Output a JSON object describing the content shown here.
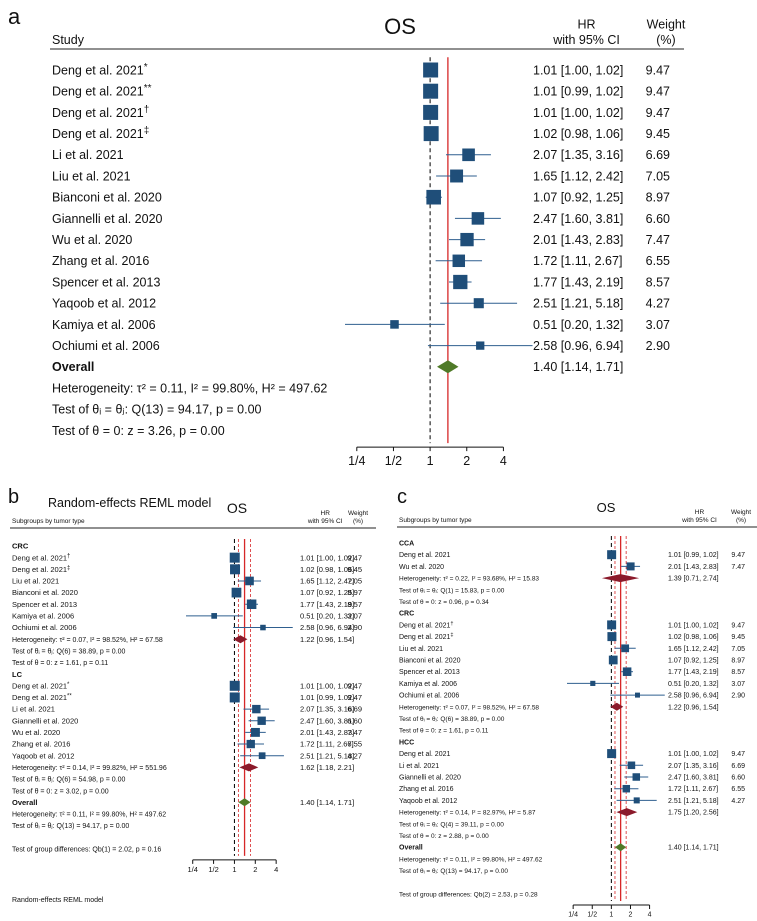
{
  "panel_labels": [
    "a",
    "b",
    "c"
  ],
  "colors": {
    "marker": "#1f4e79",
    "ci": "#2f5f8f",
    "diamond_overall": "#4f7a28",
    "diamond_subgroup": "#8b1a2b",
    "ref_line": "#d62728",
    "null_line": "#000000"
  },
  "chart_data": [
    {
      "id": "a",
      "type": "forest",
      "title": "OS",
      "col_study": "Study",
      "col_hr": [
        "HR",
        "with 95% CI"
      ],
      "col_weight": [
        "Weight",
        "(%)"
      ],
      "x_ticks": [
        "1/4",
        "1/2",
        "1",
        "2",
        "4"
      ],
      "x_tick_values": [
        0.25,
        0.5,
        1,
        2,
        4
      ],
      "xlim": [
        0.2,
        7.0
      ],
      "model_label": "Random-effects REML model",
      "rows": [
        {
          "kind": "study",
          "label": "Deng et al. 2021",
          "sup": "*",
          "hr": 1.01,
          "lo": 1.0,
          "hi": 1.02,
          "text": "1.01 [1.00, 1.02]",
          "weight": "9.47"
        },
        {
          "kind": "study",
          "label": "Deng et al. 2021",
          "sup": "**",
          "hr": 1.01,
          "lo": 0.99,
          "hi": 1.02,
          "text": "1.01 [0.99, 1.02]",
          "weight": "9.47"
        },
        {
          "kind": "study",
          "label": "Deng et al. 2021",
          "sup": "†",
          "hr": 1.01,
          "lo": 1.0,
          "hi": 1.02,
          "text": "1.01 [1.00, 1.02]",
          "weight": "9.47"
        },
        {
          "kind": "study",
          "label": "Deng et al. 2021",
          "sup": "‡",
          "hr": 1.02,
          "lo": 0.98,
          "hi": 1.06,
          "text": "1.02 [0.98, 1.06]",
          "weight": "9.45"
        },
        {
          "kind": "study",
          "label": "Li et al. 2021",
          "hr": 2.07,
          "lo": 1.35,
          "hi": 3.16,
          "text": "2.07 [1.35, 3.16]",
          "weight": "6.69"
        },
        {
          "kind": "study",
          "label": "Liu et al. 2021",
          "hr": 1.65,
          "lo": 1.12,
          "hi": 2.42,
          "text": "1.65 [1.12, 2.42]",
          "weight": "7.05"
        },
        {
          "kind": "study",
          "label": "Bianconi et al. 2020",
          "hr": 1.07,
          "lo": 0.92,
          "hi": 1.25,
          "text": "1.07 [0.92, 1.25]",
          "weight": "8.97"
        },
        {
          "kind": "study",
          "label": "Giannelli et al. 2020",
          "hr": 2.47,
          "lo": 1.6,
          "hi": 3.81,
          "text": "2.47 [1.60, 3.81]",
          "weight": "6.60"
        },
        {
          "kind": "study",
          "label": "Wu et al. 2020",
          "hr": 2.01,
          "lo": 1.43,
          "hi": 2.83,
          "text": "2.01 [1.43, 2.83]",
          "weight": "7.47"
        },
        {
          "kind": "study",
          "label": "Zhang et al. 2016",
          "hr": 1.72,
          "lo": 1.11,
          "hi": 2.67,
          "text": "1.72 [1.11, 2.67]",
          "weight": "6.55"
        },
        {
          "kind": "study",
          "label": "Spencer et al. 2013",
          "hr": 1.77,
          "lo": 1.43,
          "hi": 2.19,
          "text": "1.77 [1.43, 2.19]",
          "weight": "8.57"
        },
        {
          "kind": "study",
          "label": "Yaqoob et al. 2012",
          "hr": 2.51,
          "lo": 1.21,
          "hi": 5.18,
          "text": "2.51 [1.21, 5.18]",
          "weight": "4.27"
        },
        {
          "kind": "study",
          "label": "Kamiya et al. 2006",
          "hr": 0.51,
          "lo": 0.2,
          "hi": 1.32,
          "text": "0.51 [0.20, 1.32]",
          "weight": "3.07"
        },
        {
          "kind": "study",
          "label": "Ochiumi et al. 2006",
          "hr": 2.58,
          "lo": 0.96,
          "hi": 6.94,
          "text": "2.58 [0.96, 6.94]",
          "weight": "2.90"
        },
        {
          "kind": "overall",
          "label": "Overall",
          "hr": 1.4,
          "lo": 1.14,
          "hi": 1.71,
          "text": "1.40 [1.14, 1.71]"
        },
        {
          "kind": "stat",
          "label": "Heterogeneity: τ² = 0.11, I² = 99.80%, H² = 497.62"
        },
        {
          "kind": "stat",
          "label": "Test of θᵢ = θⱼ: Q(13) = 94.17, p = 0.00"
        },
        {
          "kind": "stat",
          "label": "Test of θ = 0: z = 3.26, p = 0.00"
        }
      ]
    },
    {
      "id": "b",
      "type": "forest",
      "title": "OS",
      "col_study": "Subgroups by tumor type",
      "col_hr": [
        "HR",
        "with 95% CI"
      ],
      "col_weight": [
        "Weight",
        "(%)"
      ],
      "x_ticks": [
        "1/4",
        "1/2",
        "1",
        "2",
        "4"
      ],
      "x_tick_values": [
        0.25,
        0.5,
        1,
        2,
        4
      ],
      "xlim": [
        0.2,
        7.0
      ],
      "model_label": "Random-effects REML model",
      "rows": [
        {
          "kind": "header",
          "label": "CRC"
        },
        {
          "kind": "study",
          "label": "Deng et al. 2021",
          "sup": "†",
          "hr": 1.01,
          "lo": 1.0,
          "hi": 1.02,
          "text": "1.01 [1.00, 1.02]",
          "weight": "9.47"
        },
        {
          "kind": "study",
          "label": "Deng et al. 2021",
          "sup": "‡",
          "hr": 1.02,
          "lo": 0.98,
          "hi": 1.06,
          "text": "1.02 [0.98, 1.06]",
          "weight": "9.45"
        },
        {
          "kind": "study",
          "label": "Liu et al. 2021",
          "hr": 1.65,
          "lo": 1.12,
          "hi": 2.42,
          "text": "1.65 [1.12, 2.42]",
          "weight": "7.05"
        },
        {
          "kind": "study",
          "label": "Bianconi et al. 2020",
          "hr": 1.07,
          "lo": 0.92,
          "hi": 1.25,
          "text": "1.07 [0.92, 1.25]",
          "weight": "8.97"
        },
        {
          "kind": "study",
          "label": "Spencer et al. 2013",
          "hr": 1.77,
          "lo": 1.43,
          "hi": 2.19,
          "text": "1.77 [1.43, 2.19]",
          "weight": "8.57"
        },
        {
          "kind": "study",
          "label": "Kamiya et al. 2006",
          "hr": 0.51,
          "lo": 0.2,
          "hi": 1.32,
          "text": "0.51 [0.20, 1.32]",
          "weight": "3.07"
        },
        {
          "kind": "study",
          "label": "Ochiumi et al. 2006",
          "hr": 2.58,
          "lo": 0.96,
          "hi": 6.94,
          "text": "2.58 [0.96, 6.94]",
          "weight": "2.90"
        },
        {
          "kind": "subgroup",
          "label": "Heterogeneity: τ² = 0.07, I² = 98.52%, H² = 67.58",
          "hr": 1.22,
          "lo": 0.96,
          "hi": 1.54,
          "text": "1.22 [0.96, 1.54]"
        },
        {
          "kind": "stat",
          "label": "Test of θᵢ = θⱼ: Q(6) = 38.89, p = 0.00"
        },
        {
          "kind": "stat",
          "label": "Test of θ = 0: z = 1.61, p = 0.11"
        },
        {
          "kind": "header",
          "label": "LC"
        },
        {
          "kind": "study",
          "label": "Deng et al. 2021",
          "sup": "*",
          "hr": 1.01,
          "lo": 1.0,
          "hi": 1.02,
          "text": "1.01 [1.00, 1.02]",
          "weight": "9.47"
        },
        {
          "kind": "study",
          "label": "Deng et al. 2021",
          "sup": "**",
          "hr": 1.01,
          "lo": 0.99,
          "hi": 1.02,
          "text": "1.01 [0.99, 1.02]",
          "weight": "9.47"
        },
        {
          "kind": "study",
          "label": "Li et al. 2021",
          "hr": 2.07,
          "lo": 1.35,
          "hi": 3.16,
          "text": "2.07 [1.35, 3.16]",
          "weight": "6.69"
        },
        {
          "kind": "study",
          "label": "Giannelli et al. 2020",
          "hr": 2.47,
          "lo": 1.6,
          "hi": 3.81,
          "text": "2.47 [1.60, 3.81]",
          "weight": "6.60"
        },
        {
          "kind": "study",
          "label": "Wu et al. 2020",
          "hr": 2.01,
          "lo": 1.43,
          "hi": 2.83,
          "text": "2.01 [1.43, 2.83]",
          "weight": "7.47"
        },
        {
          "kind": "study",
          "label": "Zhang et al. 2016",
          "hr": 1.72,
          "lo": 1.11,
          "hi": 2.67,
          "text": "1.72 [1.11, 2.67]",
          "weight": "6.55"
        },
        {
          "kind": "study",
          "label": "Yaqoob et al. 2012",
          "hr": 2.51,
          "lo": 1.21,
          "hi": 5.18,
          "text": "2.51 [1.21, 5.18]",
          "weight": "4.27"
        },
        {
          "kind": "subgroup",
          "label": "Heterogeneity: τ² = 0.14, I² = 99.82%, H² = 551.96",
          "hr": 1.62,
          "lo": 1.18,
          "hi": 2.21,
          "text": "1.62 [1.18, 2.21]"
        },
        {
          "kind": "stat",
          "label": "Test of θᵢ = θⱼ: Q(6) = 54.98, p = 0.00"
        },
        {
          "kind": "stat",
          "label": "Test of θ = 0: z = 3.02, p = 0.00"
        },
        {
          "kind": "overall",
          "label": "Overall",
          "hr": 1.4,
          "lo": 1.14,
          "hi": 1.71,
          "text": "1.40 [1.14, 1.71]"
        },
        {
          "kind": "stat",
          "label": "Heterogeneity: τ² = 0.11, I² = 99.80%, H² = 497.62"
        },
        {
          "kind": "stat",
          "label": "Test of θᵢ = θⱼ: Q(13) = 94.17, p = 0.00"
        },
        {
          "kind": "gap"
        },
        {
          "kind": "stat",
          "label": "Test of group differences: Qb(1) = 2.02, p = 0.16"
        }
      ]
    },
    {
      "id": "c",
      "type": "forest",
      "title": "OS",
      "col_study": "Subgroups by tumor type",
      "col_hr": [
        "HR",
        "with 95% CI"
      ],
      "col_weight": [
        "Weight",
        "(%)"
      ],
      "x_ticks": [
        "1/4",
        "1/2",
        "1",
        "2",
        "4"
      ],
      "x_tick_values": [
        0.25,
        0.5,
        1,
        2,
        4
      ],
      "xlim": [
        0.2,
        7.0
      ],
      "model_label": "Random-effects REML model",
      "rows": [
        {
          "kind": "header",
          "label": "CCA"
        },
        {
          "kind": "study",
          "label": "Deng et al. 2021",
          "hr": 1.01,
          "lo": 0.99,
          "hi": 1.02,
          "text": "1.01 [0.99, 1.02]",
          "weight": "9.47"
        },
        {
          "kind": "study",
          "label": "Wu et al. 2020",
          "hr": 2.01,
          "lo": 1.43,
          "hi": 2.83,
          "text": "2.01 [1.43, 2.83]",
          "weight": "7.47"
        },
        {
          "kind": "subgroup",
          "label": "Heterogeneity: τ² = 0.22, I² = 93.68%, H² = 15.83",
          "hr": 1.39,
          "lo": 0.71,
          "hi": 2.74,
          "text": "1.39 [0.71, 2.74]"
        },
        {
          "kind": "stat",
          "label": "Test of θᵢ = θⱼ: Q(1) = 15.83, p = 0.00"
        },
        {
          "kind": "stat",
          "label": "Test of θ = 0: z = 0.96, p = 0.34"
        },
        {
          "kind": "header",
          "label": "CRC"
        },
        {
          "kind": "study",
          "label": "Deng et al. 2021",
          "sup": "†",
          "hr": 1.01,
          "lo": 1.0,
          "hi": 1.02,
          "text": "1.01 [1.00, 1.02]",
          "weight": "9.47"
        },
        {
          "kind": "study",
          "label": "Deng et al. 2021",
          "sup": "‡",
          "hr": 1.02,
          "lo": 0.98,
          "hi": 1.06,
          "text": "1.02 [0.98, 1.06]",
          "weight": "9.45"
        },
        {
          "kind": "study",
          "label": "Liu et al. 2021",
          "hr": 1.65,
          "lo": 1.12,
          "hi": 2.42,
          "text": "1.65 [1.12, 2.42]",
          "weight": "7.05"
        },
        {
          "kind": "study",
          "label": "Bianconi et al. 2020",
          "hr": 1.07,
          "lo": 0.92,
          "hi": 1.25,
          "text": "1.07 [0.92, 1.25]",
          "weight": "8.97"
        },
        {
          "kind": "study",
          "label": "Spencer et al. 2013",
          "hr": 1.77,
          "lo": 1.43,
          "hi": 2.19,
          "text": "1.77 [1.43, 2.19]",
          "weight": "8.57"
        },
        {
          "kind": "study",
          "label": "Kamiya et al. 2006",
          "hr": 0.51,
          "lo": 0.2,
          "hi": 1.32,
          "text": "0.51 [0.20, 1.32]",
          "weight": "3.07"
        },
        {
          "kind": "study",
          "label": "Ochiumi et al. 2006",
          "hr": 2.58,
          "lo": 0.96,
          "hi": 6.94,
          "text": "2.58 [0.96, 6.94]",
          "weight": "2.90"
        },
        {
          "kind": "subgroup",
          "label": "Heterogeneity: τ² = 0.07, I² = 98.52%, H² = 67.58",
          "hr": 1.22,
          "lo": 0.96,
          "hi": 1.54,
          "text": "1.22 [0.96, 1.54]"
        },
        {
          "kind": "stat",
          "label": "Test of θᵢ = θⱼ: Q(6) = 38.89, p = 0.00"
        },
        {
          "kind": "stat",
          "label": "Test of θ = 0: z = 1.61, p = 0.11"
        },
        {
          "kind": "header",
          "label": "HCC"
        },
        {
          "kind": "study",
          "label": "Deng et al. 2021",
          "hr": 1.01,
          "lo": 1.0,
          "hi": 1.02,
          "text": "1.01 [1.00, 1.02]",
          "weight": "9.47"
        },
        {
          "kind": "study",
          "label": "Li et al. 2021",
          "hr": 2.07,
          "lo": 1.35,
          "hi": 3.16,
          "text": "2.07 [1.35, 3.16]",
          "weight": "6.69"
        },
        {
          "kind": "study",
          "label": "Giannelli et al. 2020",
          "hr": 2.47,
          "lo": 1.6,
          "hi": 3.81,
          "text": "2.47 [1.60, 3.81]",
          "weight": "6.60"
        },
        {
          "kind": "study",
          "label": "Zhang et al. 2016",
          "hr": 1.72,
          "lo": 1.11,
          "hi": 2.67,
          "text": "1.72 [1.11, 2.67]",
          "weight": "6.55"
        },
        {
          "kind": "study",
          "label": "Yaqoob et al. 2012",
          "hr": 2.51,
          "lo": 1.21,
          "hi": 5.18,
          "text": "2.51 [1.21, 5.18]",
          "weight": "4.27"
        },
        {
          "kind": "subgroup",
          "label": "Heterogeneity: τ² = 0.14, I² = 82.97%, H² = 5.87",
          "hr": 1.75,
          "lo": 1.2,
          "hi": 2.56,
          "text": "1.75 [1.20, 2.56]"
        },
        {
          "kind": "stat",
          "label": "Test of θᵢ = θⱼ: Q(4) = 39.11, p = 0.00"
        },
        {
          "kind": "stat",
          "label": "Test of θ = 0: z = 2.88, p = 0.00"
        },
        {
          "kind": "overall",
          "label": "Overall",
          "hr": 1.4,
          "lo": 1.14,
          "hi": 1.71,
          "text": "1.40 [1.14, 1.71]"
        },
        {
          "kind": "stat",
          "label": "Heterogeneity: τ² = 0.11, I² = 99.80%, H² = 497.62"
        },
        {
          "kind": "stat",
          "label": "Test of θᵢ = θⱼ: Q(13) = 94.17, p = 0.00"
        },
        {
          "kind": "gap"
        },
        {
          "kind": "stat",
          "label": "Test of group differences: Qb(2) = 2.53, p = 0.28"
        }
      ]
    }
  ]
}
